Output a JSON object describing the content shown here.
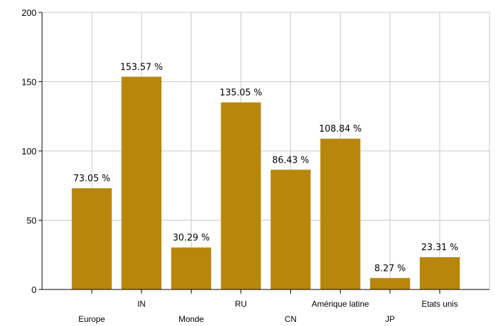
{
  "chart_data": {
    "type": "bar",
    "title": "",
    "xlabel": "",
    "ylabel": "",
    "categories": [
      "Europe",
      "IN",
      "Monde",
      "RU",
      "CN",
      "Amérique latine",
      "JP",
      "Etats unis"
    ],
    "values": [
      73.05,
      153.57,
      30.29,
      135.05,
      86.43,
      108.84,
      8.27,
      23.31
    ],
    "data_labels": [
      "73.05 %",
      "153.57 %",
      "30.29 %",
      "135.05 %",
      "86.43 %",
      "108.84 %",
      "8.27 %",
      "23.31 %"
    ],
    "ylim": [
      0,
      200
    ],
    "yticks": [
      0,
      50,
      100,
      150,
      200
    ],
    "grid": true,
    "legend": "none",
    "bar_color": "#b8860b",
    "grid_color": "#c8c8c8"
  }
}
